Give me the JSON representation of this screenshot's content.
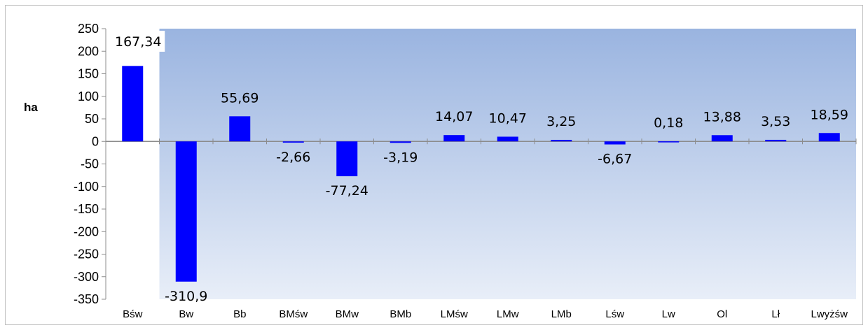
{
  "chart_data": {
    "type": "bar",
    "ylabel": "ha",
    "xlabel": "",
    "title": "",
    "ylim": [
      -350,
      250
    ],
    "yticks": [
      250,
      200,
      150,
      100,
      50,
      0,
      -50,
      -100,
      -150,
      -200,
      -250,
      -300,
      -350
    ],
    "categories": [
      "Bśw",
      "Bw",
      "Bb",
      "BMśw",
      "BMw",
      "BMb",
      "LMśw",
      "LMw",
      "LMb",
      "Lśw",
      "Lw",
      "Ol",
      "Lł",
      "Lwyżśw"
    ],
    "values": [
      167.34,
      -310.9,
      55.69,
      -2.66,
      -77.24,
      -3.19,
      14.07,
      10.47,
      3.25,
      -6.67,
      0.18,
      13.88,
      3.53,
      18.59
    ],
    "data_labels": [
      "167,34",
      "-310,9",
      "55,69",
      "-2,66",
      "-77,24",
      "-3,19",
      "14,07",
      "10,47",
      "3,25",
      "-6,67",
      "0,18",
      "13,88",
      "3,53",
      "18,59"
    ],
    "bar_color": "#0000ff",
    "plot_gradient_top": "#9ab4e0",
    "plot_gradient_bottom": "#e8eef8",
    "grid": false,
    "legend": "none"
  }
}
